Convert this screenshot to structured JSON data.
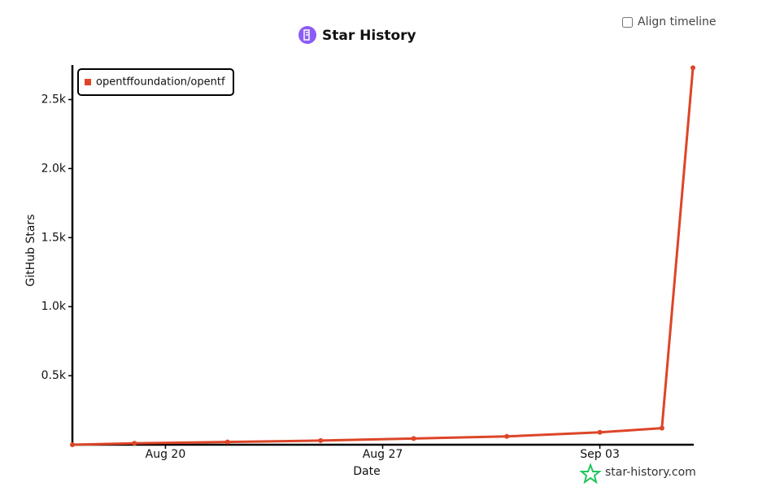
{
  "controls": {
    "align_timeline": "Align timeline"
  },
  "chart_data": {
    "type": "line",
    "title": "Star History",
    "x_label": "Date",
    "y_label": "GitHub Stars",
    "x": [
      "Aug 17",
      "Aug 19",
      "Aug 22",
      "Aug 25",
      "Aug 28",
      "Aug 31",
      "Sep 03",
      "Sep 05",
      "Sep 06"
    ],
    "series": [
      {
        "name": "opentffoundation/opentf",
        "color": "#dd4528",
        "values": [
          0,
          10,
          20,
          30,
          45,
          60,
          90,
          120,
          2730
        ]
      }
    ],
    "xlim": [
      "Aug 17",
      "Sep 06"
    ],
    "xticks": [
      "Aug 20",
      "Aug 27",
      "Sep 03"
    ],
    "ylim": [
      0,
      2750
    ],
    "yticks": [
      {
        "value": 500,
        "label": "0.5k"
      },
      {
        "value": 1000,
        "label": "1.0k"
      },
      {
        "value": 1500,
        "label": "1.5k"
      },
      {
        "value": 2000,
        "label": "2.0k"
      },
      {
        "value": 2500,
        "label": "2.5k"
      }
    ],
    "legend": "top-left",
    "watermark": "star-history.com"
  }
}
